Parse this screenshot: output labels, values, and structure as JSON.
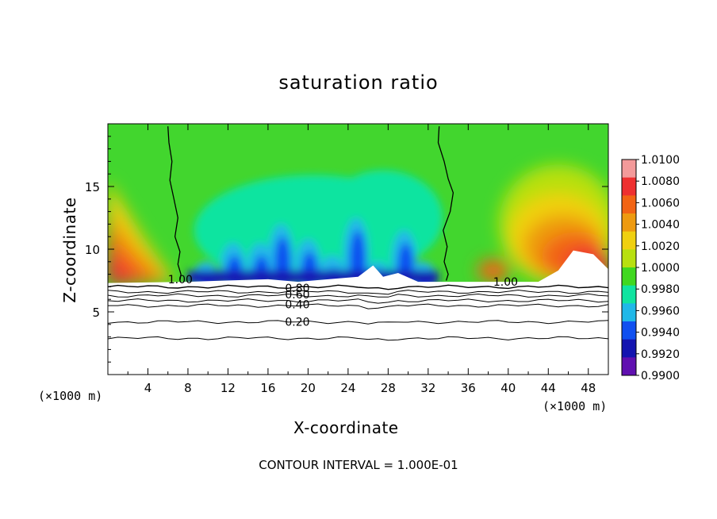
{
  "chart_data": {
    "type": "contour",
    "title": "saturation ratio",
    "xlabel": "X-coordinate",
    "ylabel": "Z-coordinate",
    "x_unit_label": "(×1000 m)",
    "xlim": [
      0,
      50
    ],
    "ylim": [
      0,
      20
    ],
    "x_ticks": [
      4,
      8,
      12,
      16,
      20,
      24,
      28,
      32,
      36,
      40,
      44,
      48
    ],
    "y_ticks": [
      5,
      10,
      15
    ],
    "colorbar": {
      "labels": [
        "1.0100",
        "1.0080",
        "1.0060",
        "1.0040",
        "1.0020",
        "1.0000",
        "0.9980",
        "0.9960",
        "0.9940",
        "0.9920",
        "0.9900"
      ],
      "colors": [
        "#f39a9a",
        "#ee3030",
        "#f26414",
        "#ee9a10",
        "#f0d010",
        "#b8e010",
        "#40d820",
        "#10e4a0",
        "#20b8e8",
        "#1050f0",
        "#1414b0",
        "#6010b0"
      ]
    },
    "fill_regions": {
      "ambient": "#42d62e",
      "left_warm_edge": [
        "#f0d010",
        "#ee9a10",
        "#f26414",
        "#ee3030"
      ],
      "plumes": [
        "#10e4a0",
        "#20b8e8",
        "#1050f0",
        "#1414b0"
      ],
      "right_warm_region": [
        "#b8e010",
        "#f0d010",
        "#ee9a10",
        "#f26414",
        "#ee3030"
      ]
    },
    "contour_labels": [
      {
        "text": "1.00",
        "x": 6.0,
        "y": 7.6
      },
      {
        "text": "1.00",
        "x": 38.5,
        "y": 7.4
      },
      {
        "text": "0.80",
        "x": 17.7,
        "y": 6.9
      },
      {
        "text": "0.60",
        "x": 17.7,
        "y": 6.4
      },
      {
        "text": "0.40",
        "x": 17.7,
        "y": 5.6
      },
      {
        "text": "0.20",
        "x": 17.7,
        "y": 4.2
      }
    ],
    "contour_levels_below": [
      7.0,
      6.6,
      6.3,
      5.9,
      5.5,
      4.2,
      2.9
    ],
    "boundary_lines": [
      {
        "level": "1.00",
        "x": [
          6.0,
          6.1,
          6.4,
          6.2,
          6.6,
          7.0,
          6.7,
          7.2,
          7.0,
          7.3,
          7.2
        ],
        "y": [
          19.8,
          18.5,
          17.0,
          15.5,
          14.0,
          12.5,
          11.0,
          9.8,
          8.8,
          8.0,
          7.5
        ]
      },
      {
        "level": "1.00",
        "x": [
          33.1,
          33.0,
          33.6,
          34.0,
          34.5,
          34.2,
          33.5,
          33.9,
          33.6,
          34.0,
          33.8
        ],
        "y": [
          19.8,
          18.5,
          17.0,
          15.6,
          14.5,
          13.0,
          11.5,
          10.2,
          9.0,
          8.0,
          7.5
        ]
      }
    ]
  },
  "footnote": "CONTOUR INTERVAL = 1.000E-01"
}
